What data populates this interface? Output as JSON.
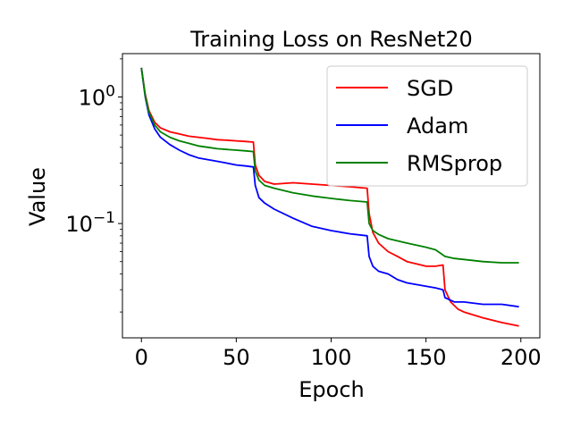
{
  "chart_data": {
    "type": "line",
    "title": "Training Loss on ResNet20",
    "xlabel": "Epoch",
    "ylabel": "Value",
    "yscale": "log",
    "xlim": [
      -10,
      210
    ],
    "ylim": [
      0.0125,
      2.2
    ],
    "grid": false,
    "legend_position": "top-right",
    "x_ticks": [
      {
        "value": 0,
        "label": "0"
      },
      {
        "value": 50,
        "label": "50"
      },
      {
        "value": 100,
        "label": "100"
      },
      {
        "value": 150,
        "label": "150"
      },
      {
        "value": 200,
        "label": "200"
      }
    ],
    "y_ticks": [
      {
        "value": 1,
        "base": "10",
        "exp": "0"
      },
      {
        "value": 0.1,
        "base": "10",
        "exp": "−1"
      }
    ],
    "series": [
      {
        "name": "SGD",
        "color": "#ff0000",
        "points": [
          [
            0,
            1.7
          ],
          [
            2,
            1.05
          ],
          [
            4,
            0.78
          ],
          [
            7,
            0.63
          ],
          [
            10,
            0.57
          ],
          [
            15,
            0.53
          ],
          [
            20,
            0.51
          ],
          [
            25,
            0.49
          ],
          [
            30,
            0.48
          ],
          [
            35,
            0.47
          ],
          [
            40,
            0.46
          ],
          [
            45,
            0.455
          ],
          [
            50,
            0.45
          ],
          [
            55,
            0.445
          ],
          [
            59,
            0.44
          ],
          [
            60,
            0.29
          ],
          [
            62,
            0.24
          ],
          [
            65,
            0.215
          ],
          [
            70,
            0.205
          ],
          [
            80,
            0.21
          ],
          [
            90,
            0.205
          ],
          [
            100,
            0.2
          ],
          [
            110,
            0.195
          ],
          [
            119,
            0.19
          ],
          [
            120,
            0.12
          ],
          [
            122,
            0.085
          ],
          [
            125,
            0.07
          ],
          [
            130,
            0.06
          ],
          [
            135,
            0.055
          ],
          [
            140,
            0.05
          ],
          [
            145,
            0.048
          ],
          [
            150,
            0.046
          ],
          [
            155,
            0.046
          ],
          [
            159,
            0.047
          ],
          [
            160,
            0.03
          ],
          [
            163,
            0.024
          ],
          [
            167,
            0.021
          ],
          [
            170,
            0.02
          ],
          [
            180,
            0.018
          ],
          [
            190,
            0.0165
          ],
          [
            199,
            0.0155
          ]
        ]
      },
      {
        "name": "Adam",
        "color": "#0000ff",
        "points": [
          [
            0,
            1.7
          ],
          [
            2,
            1.0
          ],
          [
            4,
            0.72
          ],
          [
            7,
            0.56
          ],
          [
            10,
            0.48
          ],
          [
            15,
            0.42
          ],
          [
            20,
            0.38
          ],
          [
            25,
            0.35
          ],
          [
            30,
            0.33
          ],
          [
            35,
            0.32
          ],
          [
            40,
            0.31
          ],
          [
            45,
            0.3
          ],
          [
            50,
            0.29
          ],
          [
            55,
            0.285
          ],
          [
            59,
            0.28
          ],
          [
            60,
            0.2
          ],
          [
            62,
            0.16
          ],
          [
            65,
            0.145
          ],
          [
            70,
            0.13
          ],
          [
            80,
            0.11
          ],
          [
            90,
            0.095
          ],
          [
            100,
            0.088
          ],
          [
            110,
            0.083
          ],
          [
            119,
            0.08
          ],
          [
            120,
            0.055
          ],
          [
            122,
            0.046
          ],
          [
            125,
            0.042
          ],
          [
            130,
            0.04
          ],
          [
            135,
            0.036
          ],
          [
            140,
            0.034
          ],
          [
            150,
            0.032
          ],
          [
            155,
            0.031
          ],
          [
            159,
            0.03
          ],
          [
            160,
            0.026
          ],
          [
            165,
            0.024
          ],
          [
            170,
            0.024
          ],
          [
            180,
            0.023
          ],
          [
            190,
            0.023
          ],
          [
            199,
            0.022
          ]
        ]
      },
      {
        "name": "RMSprop",
        "color": "#008000",
        "points": [
          [
            0,
            1.7
          ],
          [
            2,
            1.02
          ],
          [
            4,
            0.76
          ],
          [
            7,
            0.6
          ],
          [
            10,
            0.53
          ],
          [
            15,
            0.48
          ],
          [
            20,
            0.45
          ],
          [
            25,
            0.43
          ],
          [
            30,
            0.41
          ],
          [
            35,
            0.4
          ],
          [
            40,
            0.39
          ],
          [
            45,
            0.385
          ],
          [
            50,
            0.38
          ],
          [
            55,
            0.375
          ],
          [
            59,
            0.37
          ],
          [
            60,
            0.26
          ],
          [
            62,
            0.22
          ],
          [
            65,
            0.2
          ],
          [
            70,
            0.19
          ],
          [
            80,
            0.175
          ],
          [
            90,
            0.165
          ],
          [
            100,
            0.158
          ],
          [
            110,
            0.152
          ],
          [
            119,
            0.148
          ],
          [
            120,
            0.1
          ],
          [
            122,
            0.088
          ],
          [
            125,
            0.082
          ],
          [
            130,
            0.076
          ],
          [
            140,
            0.07
          ],
          [
            150,
            0.065
          ],
          [
            155,
            0.062
          ],
          [
            160,
            0.055
          ],
          [
            165,
            0.053
          ],
          [
            170,
            0.052
          ],
          [
            180,
            0.05
          ],
          [
            190,
            0.049
          ],
          [
            199,
            0.049
          ]
        ]
      }
    ]
  }
}
